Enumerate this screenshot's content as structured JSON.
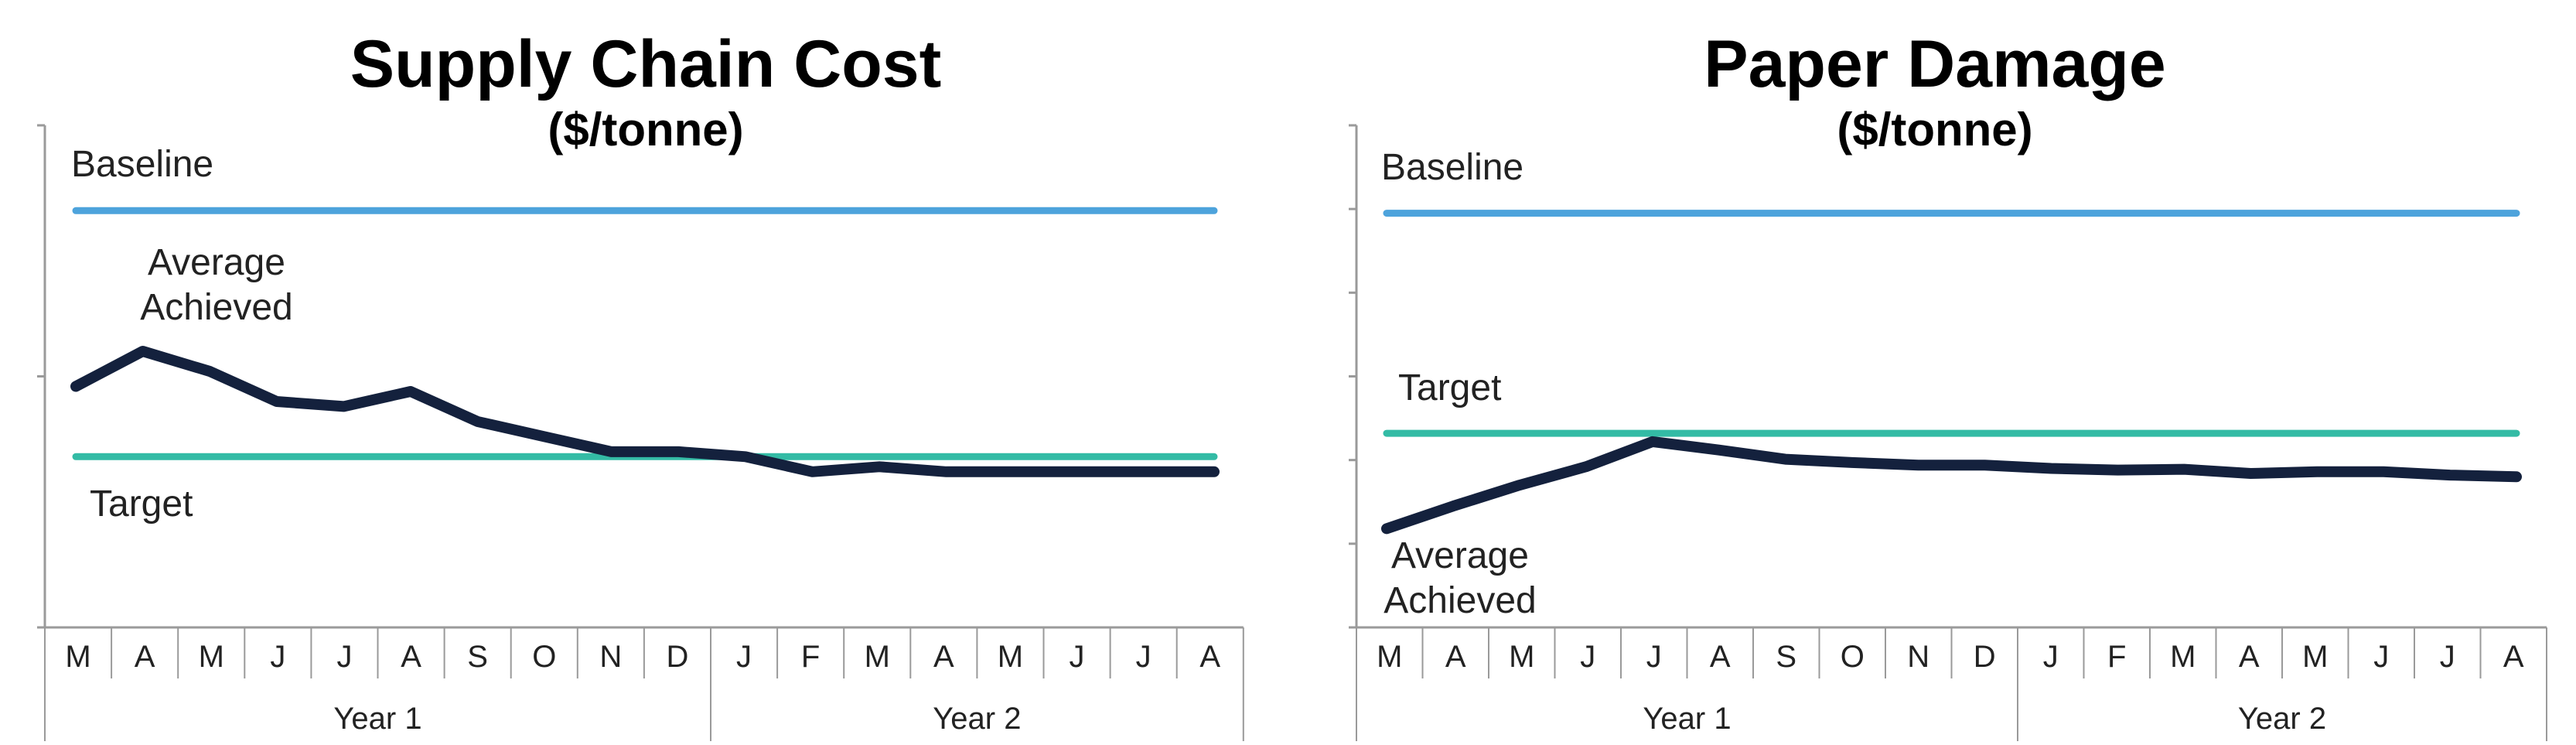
{
  "colors": {
    "title": "#14213d",
    "baseline": "#4da3dc",
    "target": "#33bba5",
    "achieved": "#14213d",
    "axis": "#9a9a9a",
    "text": "#222222"
  },
  "chart_data": [
    {
      "type": "line",
      "title": "Supply Chain Cost",
      "subtitle": "($/tonne)",
      "categories": [
        "M",
        "A",
        "M",
        "J",
        "J",
        "A",
        "S",
        "O",
        "N",
        "D",
        "J",
        "F",
        "M",
        "A",
        "M",
        "J",
        "J",
        "A"
      ],
      "groups": [
        {
          "label": "Year 1",
          "count": 10
        },
        {
          "label": "Year 2",
          "count": 8
        }
      ],
      "ylim": [
        0,
        100
      ],
      "y_ticks": [
        0,
        50,
        100
      ],
      "grid": false,
      "series": [
        {
          "name": "Baseline",
          "role": "baseline",
          "values": [
            83,
            83,
            83,
            83,
            83,
            83,
            83,
            83,
            83,
            83,
            83,
            83,
            83,
            83,
            83,
            83,
            83,
            83
          ]
        },
        {
          "name": "Target",
          "role": "target",
          "values": [
            34,
            34,
            34,
            34,
            34,
            34,
            34,
            34,
            34,
            34,
            34,
            34,
            34,
            34,
            34,
            34,
            34,
            34
          ]
        },
        {
          "name": "Average Achieved",
          "role": "achieved",
          "values": [
            48,
            55,
            51,
            45,
            44,
            47,
            41,
            38,
            35,
            35,
            34,
            31,
            32,
            31,
            31,
            31,
            31,
            31
          ]
        }
      ],
      "annotations": {
        "baseline": "Baseline",
        "achieved": [
          "Average",
          "Achieved"
        ],
        "target": "Target"
      }
    },
    {
      "type": "line",
      "title": "Paper Damage",
      "subtitle": "($/tonne)",
      "categories": [
        "M",
        "A",
        "M",
        "J",
        "J",
        "A",
        "S",
        "O",
        "N",
        "D",
        "J",
        "F",
        "M",
        "A",
        "M",
        "J",
        "J",
        "A"
      ],
      "groups": [
        {
          "label": "Year 1",
          "count": 10
        },
        {
          "label": "Year 2",
          "count": 8
        }
      ],
      "ylim": [
        0,
        6
      ],
      "y_ticks": [
        0,
        1,
        2,
        3,
        4,
        5,
        6
      ],
      "grid": false,
      "series": [
        {
          "name": "Baseline",
          "role": "baseline",
          "values": [
            4.95,
            4.95,
            4.95,
            4.95,
            4.95,
            4.95,
            4.95,
            4.95,
            4.95,
            4.95,
            4.95,
            4.95,
            4.95,
            4.95,
            4.95,
            4.95,
            4.95,
            4.95
          ]
        },
        {
          "name": "Target",
          "role": "target",
          "values": [
            2.32,
            2.32,
            2.32,
            2.32,
            2.32,
            2.32,
            2.32,
            2.32,
            2.32,
            2.32,
            2.32,
            2.32,
            2.32,
            2.32,
            2.32,
            2.32,
            2.32,
            2.32
          ]
        },
        {
          "name": "Average Achieved",
          "role": "achieved",
          "values": [
            1.18,
            1.45,
            1.7,
            1.92,
            2.22,
            2.12,
            2.01,
            1.97,
            1.94,
            1.94,
            1.9,
            1.88,
            1.89,
            1.84,
            1.86,
            1.86,
            1.82,
            1.8
          ]
        }
      ],
      "annotations": {
        "baseline": "Baseline",
        "target": "Target",
        "achieved": [
          "Average",
          "Achieved"
        ]
      }
    }
  ]
}
